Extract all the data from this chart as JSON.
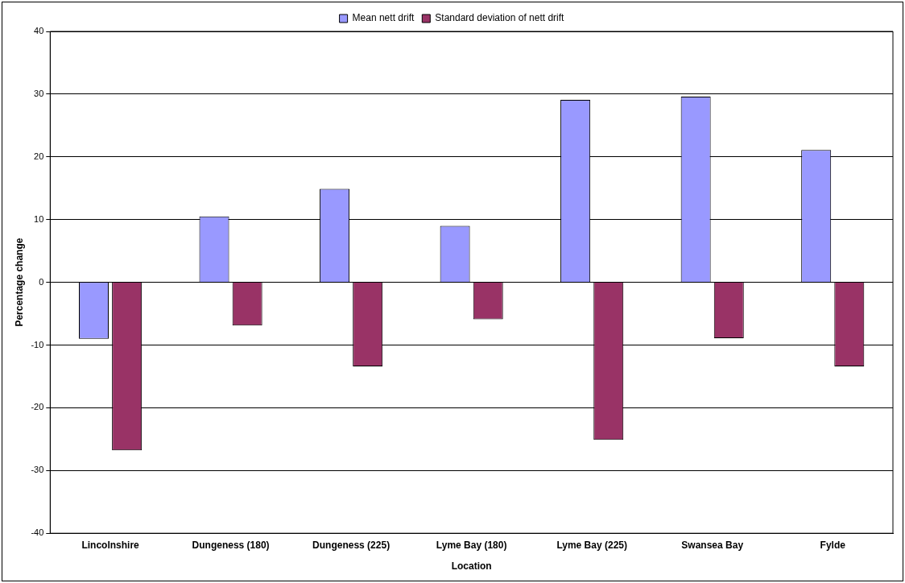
{
  "chart_data": {
    "type": "bar",
    "xlabel": "Location",
    "ylabel": "Percentage change",
    "categories": [
      "Lincolnshire",
      "Dungeness (180)",
      "Dungeness (225)",
      "Lyme Bay (180)",
      "Lyme Bay (225)",
      "Swansea Bay",
      "Fylde"
    ],
    "series": [
      {
        "name": "Mean nett drift",
        "color": "#9999ff",
        "values": [
          -9.0,
          10.5,
          14.9,
          9.0,
          29.1,
          29.6,
          21.1
        ]
      },
      {
        "name": "Standard deviation of nett drift",
        "color": "#993366",
        "values": [
          -26.8,
          -6.9,
          -13.4,
          -5.9,
          -25.1,
          -8.9,
          -13.4
        ]
      }
    ],
    "ylim": [
      -40,
      40
    ],
    "yticks": [
      -40,
      -30,
      -20,
      -10,
      0,
      10,
      20,
      30,
      40
    ],
    "grid": "y",
    "legend": "top"
  }
}
